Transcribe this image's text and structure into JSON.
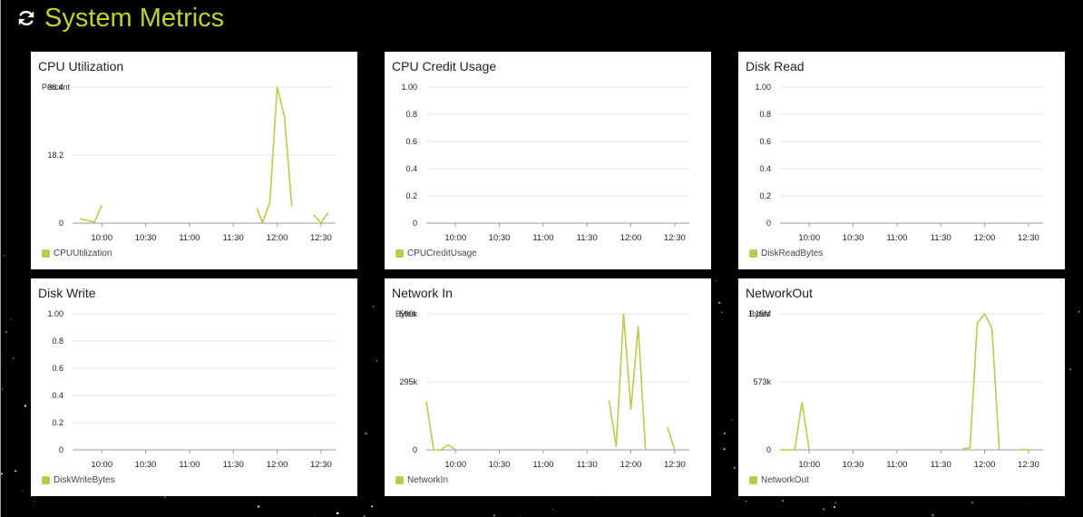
{
  "header": {
    "title": "System Metrics",
    "refresh_icon": "refresh-icon",
    "title_color": "#c4cf2e"
  },
  "colors": {
    "series": "#c0c84a",
    "grid": "#e6e6e6",
    "axis": "#9a9a9a",
    "text": "#222222",
    "background": "#000000"
  },
  "panels": [
    {
      "id": "cpu-utilization",
      "title": "CPU Utilization",
      "unit": "Percent",
      "legend": "CPUUtilization",
      "chart_data": {
        "type": "line",
        "title": "CPU Utilization",
        "ylabel": "Percent",
        "x_range": [
          "09:40",
          "12:40"
        ],
        "ylim": [
          0,
          36.4
        ],
        "y_ticks": [
          "36.4",
          "18.2",
          "0"
        ],
        "x_ticks": [
          "10:00",
          "10:30",
          "11:00",
          "11:30",
          "12:00",
          "12:30"
        ],
        "grid": true,
        "legend_position": "bottom-left",
        "series": [
          {
            "name": "CPUUtilization",
            "segments": [
              [
                [
                  "09:45",
                  1.2
                ],
                [
                  "09:55",
                  0.3
                ],
                [
                  "10:00",
                  4.8
                ]
              ],
              [
                [
                  "11:46",
                  4.0
                ],
                [
                  "11:50",
                  0.2
                ],
                [
                  "11:55",
                  5.5
                ],
                [
                  "12:00",
                  36.4
                ],
                [
                  "12:05",
                  28.5
                ],
                [
                  "12:10",
                  4.5
                ]
              ],
              [
                [
                  "12:25",
                  2.2
                ],
                [
                  "12:30",
                  0.1
                ],
                [
                  "12:35",
                  2.8
                ]
              ]
            ]
          }
        ]
      }
    },
    {
      "id": "cpu-credit-usage",
      "title": "CPU Credit Usage",
      "unit": "",
      "legend": "CPUCreditUsage",
      "chart_data": {
        "type": "line",
        "title": "CPU Credit Usage",
        "ylabel": "",
        "x_range": [
          "09:40",
          "12:40"
        ],
        "ylim": [
          0,
          1
        ],
        "y_ticks": [
          "1.00",
          "0.8",
          "0.6",
          "0.4",
          "0.2",
          "0"
        ],
        "x_ticks": [
          "10:00",
          "10:30",
          "11:00",
          "11:30",
          "12:00",
          "12:30"
        ],
        "grid": true,
        "legend_position": "bottom-left",
        "series": [
          {
            "name": "CPUCreditUsage",
            "segments": []
          }
        ]
      }
    },
    {
      "id": "disk-read",
      "title": "Disk Read",
      "unit": "",
      "legend": "DiskReadBytes",
      "chart_data": {
        "type": "line",
        "title": "Disk Read",
        "ylabel": "",
        "x_range": [
          "09:40",
          "12:40"
        ],
        "ylim": [
          0,
          1
        ],
        "y_ticks": [
          "1.00",
          "0.8",
          "0.6",
          "0.4",
          "0.2",
          "0"
        ],
        "x_ticks": [
          "10:00",
          "10:30",
          "11:00",
          "11:30",
          "12:00",
          "12:30"
        ],
        "grid": true,
        "legend_position": "bottom-left",
        "series": [
          {
            "name": "DiskReadBytes",
            "segments": []
          }
        ]
      }
    },
    {
      "id": "disk-write",
      "title": "Disk Write",
      "unit": "",
      "legend": "DiskWriteBytes",
      "chart_data": {
        "type": "line",
        "title": "Disk Write",
        "ylabel": "",
        "x_range": [
          "09:40",
          "12:40"
        ],
        "ylim": [
          0,
          1
        ],
        "y_ticks": [
          "1.00",
          "0.8",
          "0.6",
          "0.4",
          "0.2",
          "0"
        ],
        "x_ticks": [
          "10:00",
          "10:30",
          "11:00",
          "11:30",
          "12:00",
          "12:30"
        ],
        "grid": true,
        "legend_position": "bottom-left",
        "series": [
          {
            "name": "DiskWriteBytes",
            "segments": []
          }
        ]
      }
    },
    {
      "id": "network-in",
      "title": "Network In",
      "unit": "Bytes",
      "legend": "NetworkIn",
      "chart_data": {
        "type": "line",
        "title": "Network In",
        "ylabel": "Bytes",
        "x_range": [
          "09:40",
          "12:40"
        ],
        "ylim": [
          0,
          590000
        ],
        "y_ticks": [
          "590k",
          "295k",
          "0"
        ],
        "x_ticks": [
          "10:00",
          "10:30",
          "11:00",
          "11:30",
          "12:00",
          "12:30"
        ],
        "grid": true,
        "legend_position": "bottom-left",
        "series": [
          {
            "name": "NetworkIn",
            "segments": [
              [
                [
                  "09:40",
                  210000
                ],
                [
                  "09:45",
                  0
                ],
                [
                  "09:50",
                  0
                ],
                [
                  "09:55",
                  22000
                ],
                [
                  "10:00",
                  0
                ]
              ],
              [
                [
                  "11:45",
                  215000
                ],
                [
                  "11:50",
                  15000
                ],
                [
                  "11:55",
                  590000
                ],
                [
                  "12:00",
                  175000
                ],
                [
                  "12:05",
                  535000
                ],
                [
                  "12:10",
                  0
                ]
              ],
              [
                [
                  "12:25",
                  100000
                ],
                [
                  "12:30",
                  0
                ]
              ]
            ]
          }
        ]
      }
    },
    {
      "id": "network-out",
      "title": "NetworkOut",
      "unit": "Bytes",
      "legend": "NetworkOut",
      "chart_data": {
        "type": "line",
        "title": "NetworkOut",
        "ylabel": "Bytes",
        "x_range": [
          "09:40",
          "12:40"
        ],
        "ylim": [
          0,
          1150000
        ],
        "y_ticks": [
          "1.15M",
          "573k",
          "0"
        ],
        "x_ticks": [
          "10:00",
          "10:30",
          "11:00",
          "11:30",
          "12:00",
          "12:30"
        ],
        "grid": true,
        "legend_position": "bottom-left",
        "series": [
          {
            "name": "NetworkOut",
            "segments": [
              [
                [
                  "09:40",
                  0
                ],
                [
                  "09:45",
                  0
                ],
                [
                  "09:50",
                  0
                ],
                [
                  "09:55",
                  400000
                ],
                [
                  "10:00",
                  0
                ]
              ],
              [
                [
                  "11:45",
                  10000
                ],
                [
                  "11:50",
                  15000
                ],
                [
                  "11:55",
                  1070000
                ],
                [
                  "12:00",
                  1150000
                ],
                [
                  "12:05",
                  1030000
                ],
                [
                  "12:10",
                  0
                ]
              ],
              [
                [
                  "12:25",
                  5000
                ],
                [
                  "12:30",
                  0
                ]
              ]
            ]
          }
        ]
      }
    }
  ]
}
